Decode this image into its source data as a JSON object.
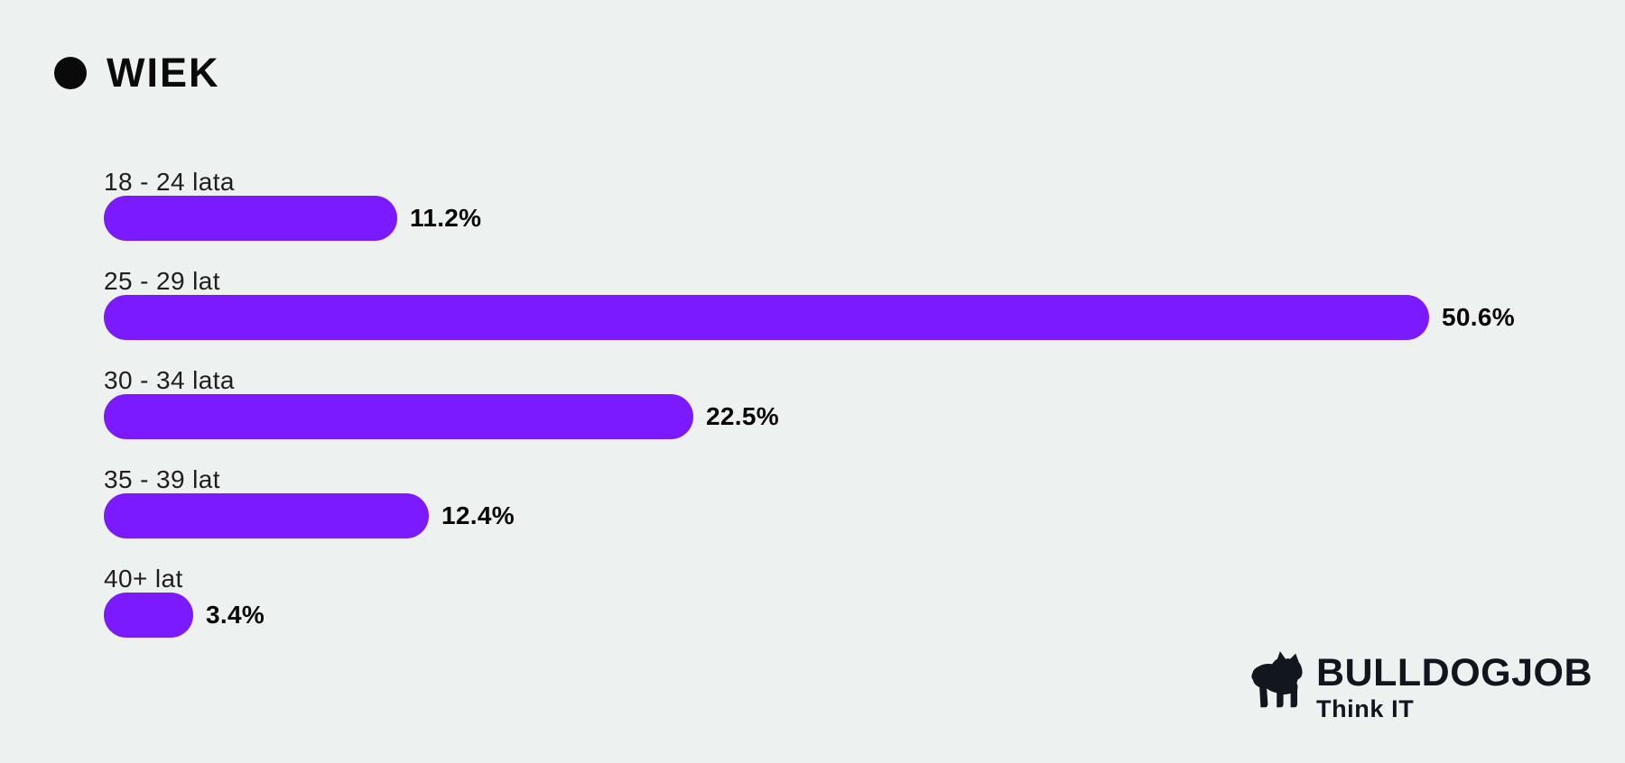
{
  "title": {
    "text": "WIEK"
  },
  "chart_data": {
    "type": "bar",
    "orientation": "horizontal",
    "title": "WIEK",
    "categories": [
      "18 - 24 lata",
      "25 - 29 lat",
      "30 - 34 lata",
      "35 - 39 lat",
      "40+ lat"
    ],
    "values": [
      11.2,
      50.6,
      22.5,
      12.4,
      3.4
    ],
    "value_labels": [
      "11.2%",
      "50.6%",
      "22.5%",
      "12.4%",
      "3.4%"
    ],
    "value_suffix": "%",
    "xlim": [
      0,
      50.6
    ],
    "grid": false,
    "legend": false,
    "bar_color": "#7b1aff",
    "value_label_color": "#050505",
    "category_label_color": "#1e1e1e"
  },
  "branding": {
    "name": "BULLDOGJOB",
    "tagline": "Think IT",
    "icon": "bulldog-silhouette",
    "color": "#10161c"
  },
  "colors": {
    "background": "#edf2f0",
    "accent": "#7b1aff",
    "title_text": "#0a0a0a"
  }
}
